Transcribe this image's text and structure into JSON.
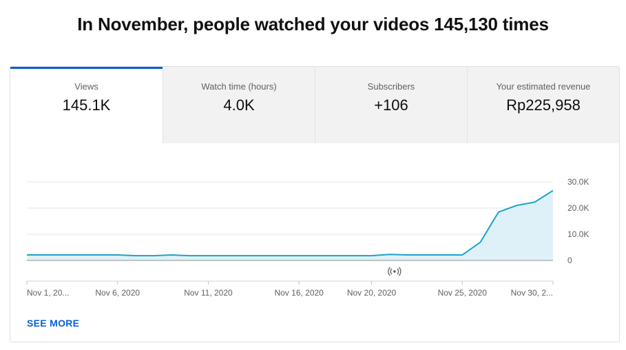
{
  "headline": "In November, people watched your videos 145,130 times",
  "tabs": [
    {
      "label": "Views",
      "value": "145.1K",
      "active": true
    },
    {
      "label": "Watch time (hours)",
      "value": "4.0K",
      "active": false
    },
    {
      "label": "Subscribers",
      "value": "+106",
      "active": false
    },
    {
      "label": "Your estimated revenue",
      "value": "Rp225,958",
      "active": false
    }
  ],
  "live_icon": "broadcast-icon",
  "see_more": "SEE MORE",
  "colors": {
    "accent": "#065fd4",
    "line": "#1aa3c9",
    "fill": "#dff1f8"
  },
  "chart_data": {
    "type": "area",
    "x": [
      "Nov 1",
      "Nov 2",
      "Nov 3",
      "Nov 4",
      "Nov 5",
      "Nov 6",
      "Nov 7",
      "Nov 8",
      "Nov 9",
      "Nov 10",
      "Nov 11",
      "Nov 12",
      "Nov 13",
      "Nov 14",
      "Nov 15",
      "Nov 16",
      "Nov 17",
      "Nov 18",
      "Nov 19",
      "Nov 20",
      "Nov 21",
      "Nov 22",
      "Nov 23",
      "Nov 24",
      "Nov 25",
      "Nov 26",
      "Nov 27",
      "Nov 28",
      "Nov 29",
      "Nov 30"
    ],
    "values": [
      2100,
      2100,
      2100,
      2100,
      2100,
      2100,
      1800,
      1800,
      2100,
      1800,
      1800,
      1800,
      1800,
      1800,
      1800,
      1800,
      1800,
      1800,
      1800,
      1800,
      2300,
      2100,
      2100,
      2100,
      2100,
      7000,
      18500,
      21000,
      22300,
      26700
    ],
    "ylim": [
      0,
      30000
    ],
    "y_ticks": [
      {
        "value": 0,
        "label": "0"
      },
      {
        "value": 10000,
        "label": "10.0K"
      },
      {
        "value": 20000,
        "label": "20.0K"
      },
      {
        "value": 30000,
        "label": "30.0K"
      }
    ],
    "x_tick_labels": [
      {
        "index": 0,
        "label": "Nov 1, 20..."
      },
      {
        "index": 5,
        "label": "Nov 6, 2020"
      },
      {
        "index": 10,
        "label": "Nov 11, 2020"
      },
      {
        "index": 15,
        "label": "Nov 16, 2020"
      },
      {
        "index": 19,
        "label": "Nov 20, 2020"
      },
      {
        "index": 24,
        "label": "Nov 25, 2020"
      },
      {
        "index": 29,
        "label": "Nov 30, 2..."
      }
    ],
    "grid": true,
    "live_marker_index": 20
  }
}
